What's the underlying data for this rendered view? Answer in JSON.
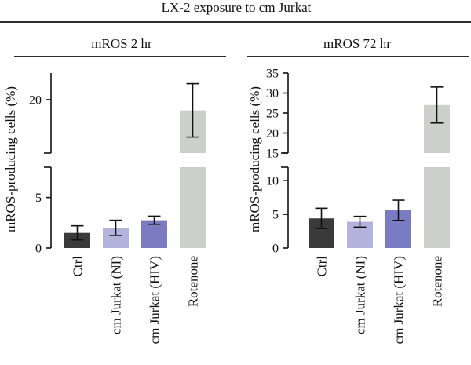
{
  "figure": {
    "main_title": "LX-2 exposure to cm Jurkat"
  },
  "colors": {
    "Ctrl": "#3a3a3a",
    "cm Jurkat (NI)": "#b3b3de",
    "cm Jurkat (HIV)": "#7b7bc2",
    "Rotenone": "#cdcfcd"
  },
  "chart_data": [
    {
      "type": "bar",
      "title": "mROS 2 hr",
      "ylabel": "mROS-producing cells (%)",
      "categories": [
        "Ctrl",
        "cm Jurkat (NI)",
        "cm Jurkat (HIV)",
        "Rotenone"
      ],
      "values": [
        1.5,
        2.0,
        2.75,
        18.8
      ],
      "error": [
        0.7,
        0.75,
        0.4,
        3.0
      ],
      "broken_axis": {
        "lower_ylim": [
          0,
          8
        ],
        "lower_ticks": [
          0,
          5
        ],
        "upper_ylim": [
          14,
          23
        ],
        "upper_ticks": [
          20
        ]
      },
      "grid": false,
      "legend": "none"
    },
    {
      "type": "bar",
      "title": "mROS 72 hr",
      "ylabel": "mROS-producing cells (%)",
      "categories": [
        "Ctrl",
        "cm Jurkat (NI)",
        "cm Jurkat (HIV)",
        "Rotenone"
      ],
      "values": [
        4.4,
        3.9,
        5.6,
        27.0
      ],
      "error": [
        1.5,
        0.8,
        1.5,
        4.5
      ],
      "broken_axis": {
        "lower_ylim": [
          0,
          12
        ],
        "lower_ticks": [
          0,
          5,
          10
        ],
        "upper_ylim": [
          15,
          35
        ],
        "upper_ticks": [
          15,
          20,
          25,
          30,
          35
        ]
      },
      "grid": false,
      "legend": "none"
    }
  ]
}
